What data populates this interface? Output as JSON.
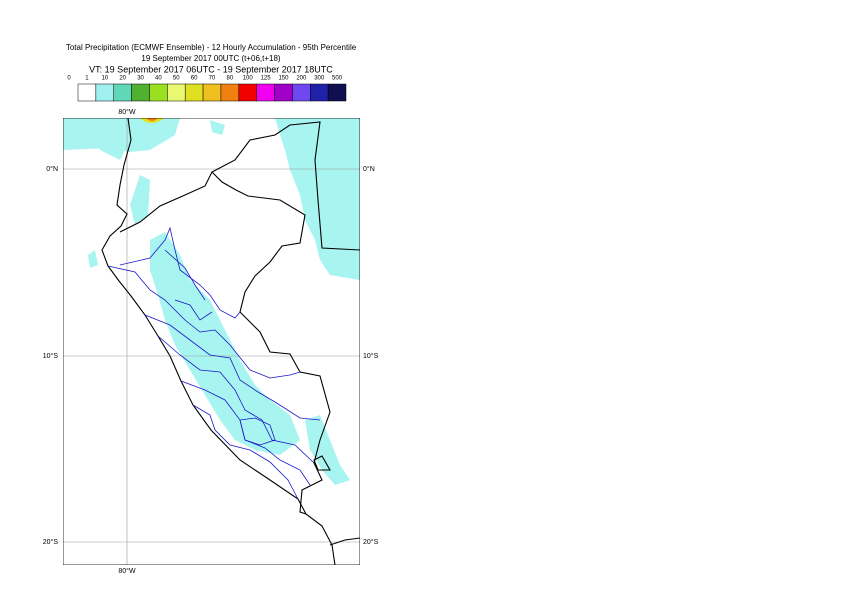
{
  "header": {
    "lines": [
      "Total Precipitation (ECMWF Ensemble) - 12 Hourly Accumulation - 95th Percentile",
      "19 September 2017 00UTC (t+06,t+18)",
      "VT: 19 September 2017 06UTC - 19 September 2017 18UTC"
    ]
  },
  "legend": {
    "thresholds": [
      0,
      1,
      10,
      20,
      30,
      40,
      50,
      60,
      70,
      80,
      100,
      125,
      150,
      200,
      300,
      500
    ],
    "colors": [
      "#ffffff",
      "#a0f0f0",
      "#60d8b8",
      "#50b030",
      "#98e020",
      "#e8f870",
      "#e0e020",
      "#f0c020",
      "#f08010",
      "#f00000",
      "#f000f0",
      "#a000c8",
      "#7048f0",
      "#2020a8",
      "#101050"
    ]
  },
  "map": {
    "grid_labels": [
      "80°W",
      "0°N",
      "10°S",
      "20°S"
    ]
  }
}
